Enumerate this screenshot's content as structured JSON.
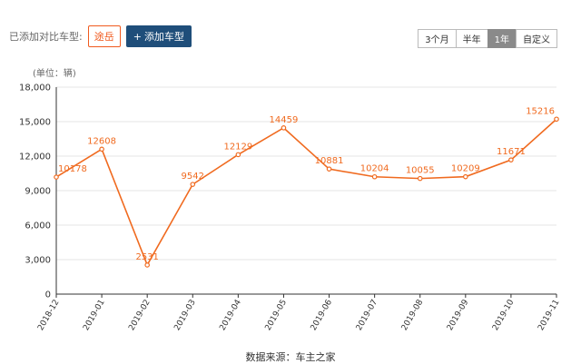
{
  "page": {
    "title": "",
    "compare_label": "已添加对比车型:",
    "compare_tag": "途岳",
    "add_button": "添加车型",
    "source": "数据来源：车主之家"
  },
  "range_buttons": [
    "3个月",
    "半年",
    "1年",
    "自定义"
  ],
  "active_range": "1年",
  "icons": {
    "add": "plus-icon"
  },
  "colors": {
    "line": "#f06a1f",
    "accent": "#1f4e7a",
    "tag": "#f05a1e"
  },
  "chart_data": {
    "type": "line",
    "unit_label": "(单位：辆)",
    "categories": [
      "2018-12",
      "2019-01",
      "2019-02",
      "2019-03",
      "2019-04",
      "2019-05",
      "2019-06",
      "2019-07",
      "2019-08",
      "2019-09",
      "2019-10",
      "2019-11"
    ],
    "values": [
      10178,
      12608,
      2531,
      9542,
      12129,
      14459,
      10881,
      10204,
      10055,
      10209,
      11671,
      15216
    ],
    "ylim": [
      0,
      18000
    ],
    "yticks": [
      0,
      3000,
      6000,
      9000,
      12000,
      15000,
      18000
    ],
    "ytick_labels": [
      "0",
      "3,000",
      "6,000",
      "9,000",
      "12,000",
      "15,000",
      "18,000"
    ],
    "grid": true,
    "legend": "none"
  }
}
